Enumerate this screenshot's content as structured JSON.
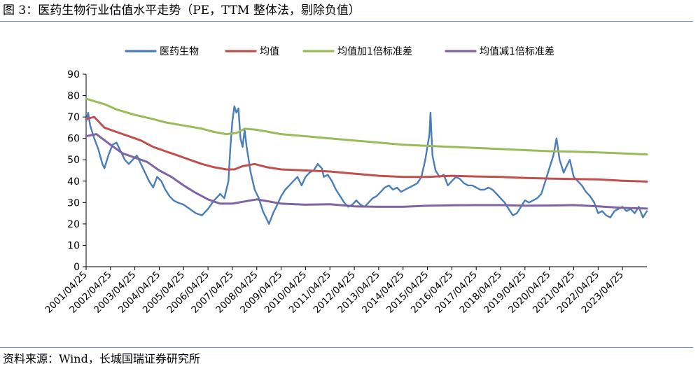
{
  "figure": {
    "title": "图 3：医药生物行业估值水平走势（PE，TTM 整体法，剔除负值）",
    "source": "资料来源：Wind，长城国瑞证券研究所"
  },
  "chart_data": {
    "type": "line",
    "xlabel": "",
    "ylabel": "",
    "ylim": [
      0,
      90
    ],
    "yticks": [
      0,
      10,
      20,
      30,
      40,
      50,
      60,
      70,
      80,
      90
    ],
    "xlim": [
      "2001/04/25",
      "2024/04/25"
    ],
    "xticks": [
      "2001/04/25",
      "2002/04/25",
      "2003/04/25",
      "2004/04/25",
      "2005/04/25",
      "2006/04/25",
      "2007/04/25",
      "2008/04/25",
      "2009/04/25",
      "2010/04/25",
      "2011/04/25",
      "2012/04/25",
      "2013/04/25",
      "2014/04/25",
      "2015/04/25",
      "2016/04/25",
      "2017/04/25",
      "2018/04/25",
      "2019/04/25",
      "2020/04/25",
      "2021/04/25",
      "2022/04/25",
      "2023/04/25"
    ],
    "grid": false,
    "legend_position": "top",
    "series": [
      {
        "name": "医药生物",
        "color": "#4a7ebb",
        "points": [
          [
            "2001/04/25",
            68
          ],
          [
            "2001/05/25",
            72
          ],
          [
            "2001/06/25",
            66
          ],
          [
            "2001/08/25",
            60
          ],
          [
            "2001/10/25",
            55
          ],
          [
            "2001/12/25",
            48
          ],
          [
            "2002/01/25",
            46
          ],
          [
            "2002/03/25",
            52
          ],
          [
            "2002/05/25",
            57
          ],
          [
            "2002/07/25",
            58
          ],
          [
            "2002/09/25",
            54
          ],
          [
            "2002/11/25",
            50
          ],
          [
            "2003/01/25",
            48
          ],
          [
            "2003/03/25",
            50
          ],
          [
            "2003/05/25",
            52
          ],
          [
            "2003/07/25",
            48
          ],
          [
            "2003/09/25",
            44
          ],
          [
            "2003/11/25",
            40
          ],
          [
            "2004/01/25",
            37
          ],
          [
            "2004/03/25",
            42
          ],
          [
            "2004/05/25",
            40
          ],
          [
            "2004/07/25",
            36
          ],
          [
            "2004/09/25",
            33
          ],
          [
            "2004/11/25",
            31
          ],
          [
            "2005/01/25",
            30
          ],
          [
            "2005/04/25",
            29
          ],
          [
            "2005/07/25",
            27
          ],
          [
            "2005/10/25",
            25
          ],
          [
            "2006/01/25",
            24
          ],
          [
            "2006/04/25",
            27
          ],
          [
            "2006/07/25",
            31
          ],
          [
            "2006/10/25",
            34
          ],
          [
            "2006/12/25",
            32
          ],
          [
            "2007/02/25",
            40
          ],
          [
            "2007/03/25",
            55
          ],
          [
            "2007/04/25",
            68
          ],
          [
            "2007/05/25",
            75
          ],
          [
            "2007/06/25",
            72
          ],
          [
            "2007/07/25",
            74
          ],
          [
            "2007/08/25",
            60
          ],
          [
            "2007/09/25",
            56
          ],
          [
            "2007/10/25",
            64
          ],
          [
            "2007/11/25",
            56
          ],
          [
            "2007/12/25",
            50
          ],
          [
            "2008/01/25",
            44
          ],
          [
            "2008/03/25",
            36
          ],
          [
            "2008/05/25",
            32
          ],
          [
            "2008/07/25",
            26
          ],
          [
            "2008/09/25",
            22
          ],
          [
            "2008/10/25",
            20
          ],
          [
            "2008/12/25",
            25
          ],
          [
            "2009/02/25",
            29
          ],
          [
            "2009/04/25",
            33
          ],
          [
            "2009/06/25",
            36
          ],
          [
            "2009/08/25",
            38
          ],
          [
            "2009/10/25",
            40
          ],
          [
            "2009/12/25",
            42
          ],
          [
            "2010/02/25",
            38
          ],
          [
            "2010/04/25",
            42
          ],
          [
            "2010/06/25",
            44
          ],
          [
            "2010/08/25",
            45
          ],
          [
            "2010/10/25",
            48
          ],
          [
            "2010/12/25",
            46
          ],
          [
            "2011/01/25",
            42
          ],
          [
            "2011/03/25",
            43
          ],
          [
            "2011/05/25",
            40
          ],
          [
            "2011/07/25",
            36
          ],
          [
            "2011/09/25",
            33
          ],
          [
            "2011/11/25",
            30
          ],
          [
            "2012/01/25",
            28
          ],
          [
            "2012/03/25",
            29
          ],
          [
            "2012/05/25",
            31
          ],
          [
            "2012/07/25",
            29
          ],
          [
            "2012/09/25",
            28
          ],
          [
            "2012/11/25",
            30
          ],
          [
            "2013/01/25",
            32
          ],
          [
            "2013/03/25",
            33
          ],
          [
            "2013/05/25",
            35
          ],
          [
            "2013/07/25",
            37
          ],
          [
            "2013/09/25",
            38
          ],
          [
            "2013/11/25",
            36
          ],
          [
            "2014/01/25",
            37
          ],
          [
            "2014/03/25",
            35
          ],
          [
            "2014/05/25",
            36
          ],
          [
            "2014/07/25",
            37
          ],
          [
            "2014/09/25",
            38
          ],
          [
            "2014/11/25",
            39
          ],
          [
            "2015/01/25",
            42
          ],
          [
            "2015/03/25",
            50
          ],
          [
            "2015/05/25",
            62
          ],
          [
            "2015/06/10",
            72
          ],
          [
            "2015/07/10",
            52
          ],
          [
            "2015/08/25",
            45
          ],
          [
            "2015/10/25",
            42
          ],
          [
            "2015/12/25",
            43
          ],
          [
            "2016/02/25",
            38
          ],
          [
            "2016/04/25",
            40
          ],
          [
            "2016/06/25",
            42
          ],
          [
            "2016/08/25",
            41
          ],
          [
            "2016/10/25",
            39
          ],
          [
            "2016/12/25",
            38
          ],
          [
            "2017/02/25",
            38
          ],
          [
            "2017/04/25",
            37
          ],
          [
            "2017/06/25",
            36
          ],
          [
            "2017/08/25",
            36
          ],
          [
            "2017/10/25",
            37
          ],
          [
            "2017/12/25",
            36
          ],
          [
            "2018/02/25",
            34
          ],
          [
            "2018/04/25",
            32
          ],
          [
            "2018/06/25",
            30
          ],
          [
            "2018/08/25",
            27
          ],
          [
            "2018/10/25",
            24
          ],
          [
            "2018/12/25",
            25
          ],
          [
            "2019/02/25",
            28
          ],
          [
            "2019/04/25",
            31
          ],
          [
            "2019/06/25",
            30
          ],
          [
            "2019/08/25",
            31
          ],
          [
            "2019/10/25",
            32
          ],
          [
            "2019/12/25",
            34
          ],
          [
            "2020/02/25",
            40
          ],
          [
            "2020/04/25",
            46
          ],
          [
            "2020/06/25",
            52
          ],
          [
            "2020/08/10",
            60
          ],
          [
            "2020/09/25",
            50
          ],
          [
            "2020/11/25",
            44
          ],
          [
            "2021/01/25",
            48
          ],
          [
            "2021/02/25",
            50
          ],
          [
            "2021/04/25",
            42
          ],
          [
            "2021/06/25",
            40
          ],
          [
            "2021/08/25",
            38
          ],
          [
            "2021/10/25",
            35
          ],
          [
            "2021/12/25",
            33
          ],
          [
            "2022/02/25",
            30
          ],
          [
            "2022/04/25",
            25
          ],
          [
            "2022/06/25",
            26
          ],
          [
            "2022/08/25",
            24
          ],
          [
            "2022/10/25",
            23
          ],
          [
            "2022/12/25",
            26
          ],
          [
            "2023/02/25",
            27
          ],
          [
            "2023/04/25",
            28
          ],
          [
            "2023/06/25",
            26
          ],
          [
            "2023/08/25",
            27
          ],
          [
            "2023/10/25",
            25
          ],
          [
            "2023/12/25",
            28
          ],
          [
            "2024/02/25",
            23
          ],
          [
            "2024/04/25",
            26
          ]
        ]
      },
      {
        "name": "均值",
        "color": "#c0504d",
        "points": [
          [
            "2001/04/25",
            69
          ],
          [
            "2001/08/25",
            70
          ],
          [
            "2002/01/25",
            65
          ],
          [
            "2002/07/25",
            63
          ],
          [
            "2003/01/25",
            61
          ],
          [
            "2003/07/25",
            59
          ],
          [
            "2004/01/25",
            56
          ],
          [
            "2004/07/25",
            54
          ],
          [
            "2005/01/25",
            52
          ],
          [
            "2005/07/25",
            50
          ],
          [
            "2006/01/25",
            48
          ],
          [
            "2006/07/25",
            46.5
          ],
          [
            "2007/01/25",
            45.5
          ],
          [
            "2007/05/25",
            45.5
          ],
          [
            "2007/09/25",
            47
          ],
          [
            "2008/03/25",
            48
          ],
          [
            "2008/09/25",
            46.5
          ],
          [
            "2009/04/25",
            45.5
          ],
          [
            "2010/04/25",
            45
          ],
          [
            "2011/04/25",
            44.5
          ],
          [
            "2012/04/25",
            43.5
          ],
          [
            "2013/04/25",
            42.5
          ],
          [
            "2014/04/25",
            42
          ],
          [
            "2015/04/25",
            42
          ],
          [
            "2016/04/25",
            42.5
          ],
          [
            "2017/04/25",
            42.2
          ],
          [
            "2018/04/25",
            42
          ],
          [
            "2019/04/25",
            41.5
          ],
          [
            "2020/04/25",
            41.2
          ],
          [
            "2021/04/25",
            41
          ],
          [
            "2022/04/25",
            40.8
          ],
          [
            "2023/04/25",
            40.2
          ],
          [
            "2024/04/25",
            39.8
          ]
        ]
      },
      {
        "name": "均值加1倍标准差",
        "color": "#9bbb59",
        "points": [
          [
            "2001/04/25",
            78.5
          ],
          [
            "2002/01/25",
            76
          ],
          [
            "2002/07/25",
            73.5
          ],
          [
            "2003/04/25",
            71
          ],
          [
            "2004/01/25",
            69
          ],
          [
            "2004/07/25",
            67.5
          ],
          [
            "2005/04/25",
            66
          ],
          [
            "2006/01/25",
            64.5
          ],
          [
            "2006/07/25",
            63
          ],
          [
            "2007/01/25",
            62
          ],
          [
            "2007/06/25",
            62.5
          ],
          [
            "2007/10/25",
            64.5
          ],
          [
            "2008/04/25",
            64
          ],
          [
            "2009/04/25",
            62
          ],
          [
            "2010/04/25",
            61
          ],
          [
            "2011/04/25",
            60
          ],
          [
            "2012/04/25",
            59
          ],
          [
            "2013/04/25",
            58
          ],
          [
            "2014/04/25",
            57
          ],
          [
            "2015/04/25",
            56.5
          ],
          [
            "2016/04/25",
            56
          ],
          [
            "2017/04/25",
            55.5
          ],
          [
            "2018/04/25",
            55
          ],
          [
            "2019/04/25",
            54.5
          ],
          [
            "2020/04/25",
            54
          ],
          [
            "2021/04/25",
            53.8
          ],
          [
            "2022/04/25",
            53.4
          ],
          [
            "2023/04/25",
            53
          ],
          [
            "2024/04/25",
            52.5
          ]
        ]
      },
      {
        "name": "均值减1倍标准差",
        "color": "#8064a2",
        "points": [
          [
            "2001/04/25",
            61
          ],
          [
            "2001/09/25",
            62
          ],
          [
            "2002/04/25",
            57
          ],
          [
            "2002/10/25",
            53
          ],
          [
            "2003/04/25",
            51
          ],
          [
            "2003/10/25",
            49
          ],
          [
            "2004/04/25",
            45
          ],
          [
            "2004/10/25",
            42
          ],
          [
            "2005/04/25",
            38
          ],
          [
            "2005/10/25",
            34.5
          ],
          [
            "2006/04/25",
            31.5
          ],
          [
            "2006/10/25",
            29.5
          ],
          [
            "2007/04/25",
            29.5
          ],
          [
            "2007/10/25",
            30.5
          ],
          [
            "2008/04/25",
            31.5
          ],
          [
            "2008/10/25",
            30.5
          ],
          [
            "2009/04/25",
            29.5
          ],
          [
            "2010/04/25",
            29
          ],
          [
            "2011/04/25",
            29.2
          ],
          [
            "2012/04/25",
            28.2
          ],
          [
            "2013/04/25",
            28
          ],
          [
            "2014/04/25",
            28
          ],
          [
            "2015/04/25",
            28.5
          ],
          [
            "2016/04/25",
            28.7
          ],
          [
            "2017/04/25",
            28.8
          ],
          [
            "2018/04/25",
            28.8
          ],
          [
            "2019/04/25",
            28.5
          ],
          [
            "2020/04/25",
            28.6
          ],
          [
            "2021/04/25",
            28.8
          ],
          [
            "2022/04/25",
            28.2
          ],
          [
            "2023/04/25",
            27.5
          ],
          [
            "2024/04/25",
            27.2
          ]
        ]
      }
    ]
  }
}
